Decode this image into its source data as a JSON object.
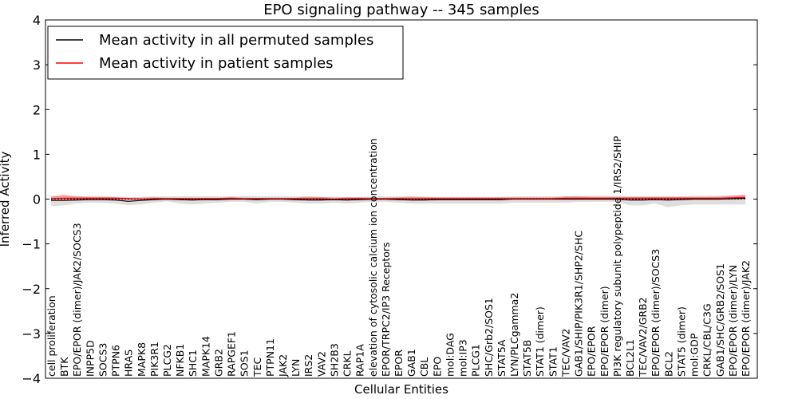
{
  "chart_data": {
    "type": "line",
    "title": "EPO signaling pathway -- 345 samples",
    "xlabel": "Cellular Entities",
    "ylabel": "Inferred Activity",
    "ylim": [
      -4,
      4
    ],
    "yticks": [
      -4,
      -3,
      -2,
      -1,
      0,
      1,
      2,
      3,
      4
    ],
    "grid": false,
    "legend_position": "top-left",
    "categories": [
      "cell proliferation",
      "BTK",
      "EPO/EPOR (dimer)/JAK2/SOCS3",
      "INPP5D",
      "SOCS3",
      "PTPN6",
      "HRAS",
      "MAPK8",
      "PIK3R1",
      "PLCG2",
      "NFKB1",
      "SHC1",
      "MAPK14",
      "GRB2",
      "RAPGEF1",
      "SOS1",
      "TEC",
      "PTPN11",
      "JAK2",
      "LYN",
      "IRS2",
      "VAV2",
      "SH2B3",
      "CRKL",
      "RAP1A",
      "elevation of cytosolic calcium ion concentration",
      "EPOR/TRPC2/IP3 Receptors",
      "EPOR",
      "GAB1",
      "CBL",
      "EPO",
      "mol:DAG",
      "mol:IP3",
      "PLCG1",
      "SHC/Grb2/SOS1",
      "STAT5A",
      "LYN/PLCgamma2",
      "STAT5B",
      "STAT1 (dimer)",
      "STAT1",
      "TEC/VAV2",
      "GAB1/SHIP/PIK3R1/SHP2/SHC",
      "EPO/EPOR",
      "EPO/EPOR (dimer)",
      "PI3K regulatory subunit polypeptide 1/IRS2/SHIP",
      "BCL2L1",
      "TEC/VAV2/GRB2",
      "EPO/EPOR (dimer)/SOCS3",
      "BCL2",
      "STAT5 (dimer)",
      "mol:GDP",
      "CRKL/CBL/C3G",
      "GAB1/SHC/GRB2/SOS1",
      "EPO/EPOR (dimer)/LYN",
      "EPO/EPOR (dimer)/JAK2"
    ],
    "series": [
      {
        "name": "Mean activity in all permuted samples",
        "color": "#000000",
        "values": [
          -0.03,
          -0.03,
          -0.02,
          -0.01,
          -0.01,
          -0.02,
          -0.05,
          -0.03,
          -0.01,
          0.0,
          -0.01,
          -0.02,
          -0.01,
          -0.01,
          0.0,
          0.0,
          -0.01,
          0.0,
          0.0,
          -0.01,
          -0.02,
          -0.02,
          -0.01,
          -0.02,
          -0.01,
          0.0,
          0.0,
          -0.01,
          -0.02,
          -0.02,
          -0.01,
          -0.01,
          -0.01,
          -0.01,
          -0.01,
          -0.01,
          0.0,
          0.0,
          0.0,
          0.0,
          0.0,
          0.0,
          0.0,
          0.0,
          0.0,
          -0.02,
          -0.02,
          -0.01,
          -0.02,
          -0.01,
          0.0,
          0.0,
          0.0,
          0.01,
          0.02
        ],
        "band_low": [
          -0.16,
          -0.14,
          -0.1,
          -0.08,
          -0.08,
          -0.1,
          -0.14,
          -0.12,
          -0.08,
          -0.05,
          -0.1,
          -0.12,
          -0.1,
          -0.08,
          -0.06,
          -0.06,
          -0.1,
          -0.06,
          -0.06,
          -0.08,
          -0.1,
          -0.1,
          -0.08,
          -0.1,
          -0.08,
          -0.06,
          -0.06,
          -0.08,
          -0.1,
          -0.1,
          -0.1,
          -0.1,
          -0.1,
          -0.1,
          -0.1,
          -0.1,
          -0.08,
          -0.08,
          -0.08,
          -0.08,
          -0.08,
          -0.06,
          -0.06,
          -0.06,
          -0.06,
          -0.14,
          -0.14,
          -0.1,
          -0.18,
          -0.14,
          -0.12,
          -0.12,
          -0.12,
          -0.12,
          -0.12
        ],
        "band_high": [
          0.08,
          0.06,
          0.06,
          0.06,
          0.06,
          0.06,
          0.04,
          0.05,
          0.06,
          0.06,
          0.06,
          0.06,
          0.06,
          0.06,
          0.07,
          0.07,
          0.06,
          0.06,
          0.06,
          0.06,
          0.05,
          0.05,
          0.05,
          0.05,
          0.05,
          0.06,
          0.06,
          0.06,
          0.05,
          0.05,
          0.05,
          0.05,
          0.05,
          0.05,
          0.05,
          0.05,
          0.06,
          0.06,
          0.06,
          0.06,
          0.06,
          0.07,
          0.07,
          0.07,
          0.07,
          0.06,
          0.06,
          0.06,
          0.06,
          0.06,
          0.07,
          0.07,
          0.08,
          0.09,
          0.1
        ]
      },
      {
        "name": "Mean activity in patient samples",
        "color": "#ff0000",
        "values": [
          0.01,
          0.02,
          0.02,
          0.02,
          0.02,
          0.02,
          0.01,
          0.0,
          0.01,
          0.01,
          0.01,
          0.01,
          0.01,
          0.01,
          0.02,
          0.01,
          0.01,
          0.01,
          0.01,
          0.01,
          0.01,
          0.01,
          0.0,
          0.01,
          0.01,
          0.01,
          0.01,
          0.01,
          0.01,
          0.01,
          0.01,
          0.01,
          0.01,
          0.01,
          0.01,
          0.01,
          0.01,
          0.01,
          0.01,
          0.01,
          0.02,
          0.02,
          0.02,
          0.02,
          0.02,
          0.02,
          0.02,
          0.02,
          0.02,
          0.02,
          0.02,
          0.02,
          0.02,
          0.03,
          0.04
        ],
        "band_low": [
          -0.02,
          -0.02,
          -0.01,
          -0.01,
          -0.01,
          -0.01,
          -0.02,
          -0.02,
          -0.01,
          -0.01,
          -0.01,
          -0.01,
          -0.01,
          -0.01,
          -0.01,
          -0.01,
          -0.01,
          -0.01,
          -0.01,
          -0.01,
          -0.02,
          -0.02,
          -0.02,
          -0.02,
          -0.02,
          -0.02,
          -0.02,
          -0.02,
          -0.02,
          -0.02,
          -0.02,
          -0.02,
          -0.02,
          -0.02,
          -0.02,
          -0.02,
          -0.01,
          -0.01,
          -0.01,
          -0.01,
          -0.01,
          -0.01,
          -0.01,
          -0.01,
          -0.01,
          -0.01,
          -0.01,
          -0.01,
          -0.01,
          -0.01,
          -0.01,
          -0.01,
          -0.01,
          -0.01,
          0.0
        ],
        "band_high": [
          0.05,
          0.1,
          0.06,
          0.05,
          0.05,
          0.04,
          0.03,
          0.03,
          0.04,
          0.03,
          0.03,
          0.03,
          0.03,
          0.03,
          0.04,
          0.03,
          0.03,
          0.03,
          0.03,
          0.03,
          0.06,
          0.05,
          0.03,
          0.04,
          0.04,
          0.03,
          0.03,
          0.04,
          0.06,
          0.05,
          0.04,
          0.04,
          0.04,
          0.04,
          0.04,
          0.04,
          0.04,
          0.04,
          0.04,
          0.04,
          0.06,
          0.06,
          0.05,
          0.05,
          0.05,
          0.05,
          0.05,
          0.05,
          0.05,
          0.05,
          0.05,
          0.05,
          0.05,
          0.07,
          0.09
        ]
      }
    ]
  }
}
